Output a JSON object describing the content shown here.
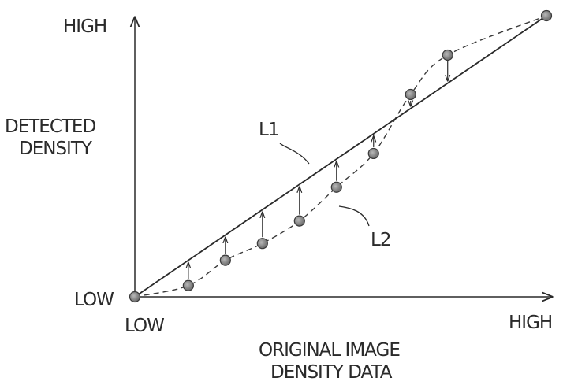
{
  "chart_data": {
    "type": "line",
    "title": "",
    "ylabel": [
      "DETECTED",
      "DENSITY"
    ],
    "xlabel": [
      "ORIGINAL IMAGE",
      "DENSITY DATA"
    ],
    "y_axis": {
      "high_label": "HIGH",
      "low_label": "LOW"
    },
    "x_axis": {
      "low_label": "LOW",
      "high_label": "HIGH"
    },
    "xlim": [
      0,
      1
    ],
    "ylim": [
      0,
      1
    ],
    "grid": false,
    "legend": "none",
    "series": [
      {
        "name": "L1",
        "style": "solid",
        "points": [
          [
            0,
            0
          ],
          [
            1,
            1
          ]
        ]
      },
      {
        "name": "L2",
        "style": "dashed",
        "points": [
          [
            0.0,
            0.0
          ],
          [
            0.13,
            0.04
          ],
          [
            0.22,
            0.13
          ],
          [
            0.31,
            0.19
          ],
          [
            0.4,
            0.27
          ],
          [
            0.49,
            0.39
          ],
          [
            0.58,
            0.51
          ],
          [
            0.67,
            0.72
          ],
          [
            0.76,
            0.86
          ],
          [
            1.0,
            1.0
          ]
        ]
      }
    ],
    "arrow_x": [
      0.13,
      0.22,
      0.31,
      0.4,
      0.49,
      0.58,
      0.67,
      0.76
    ]
  }
}
